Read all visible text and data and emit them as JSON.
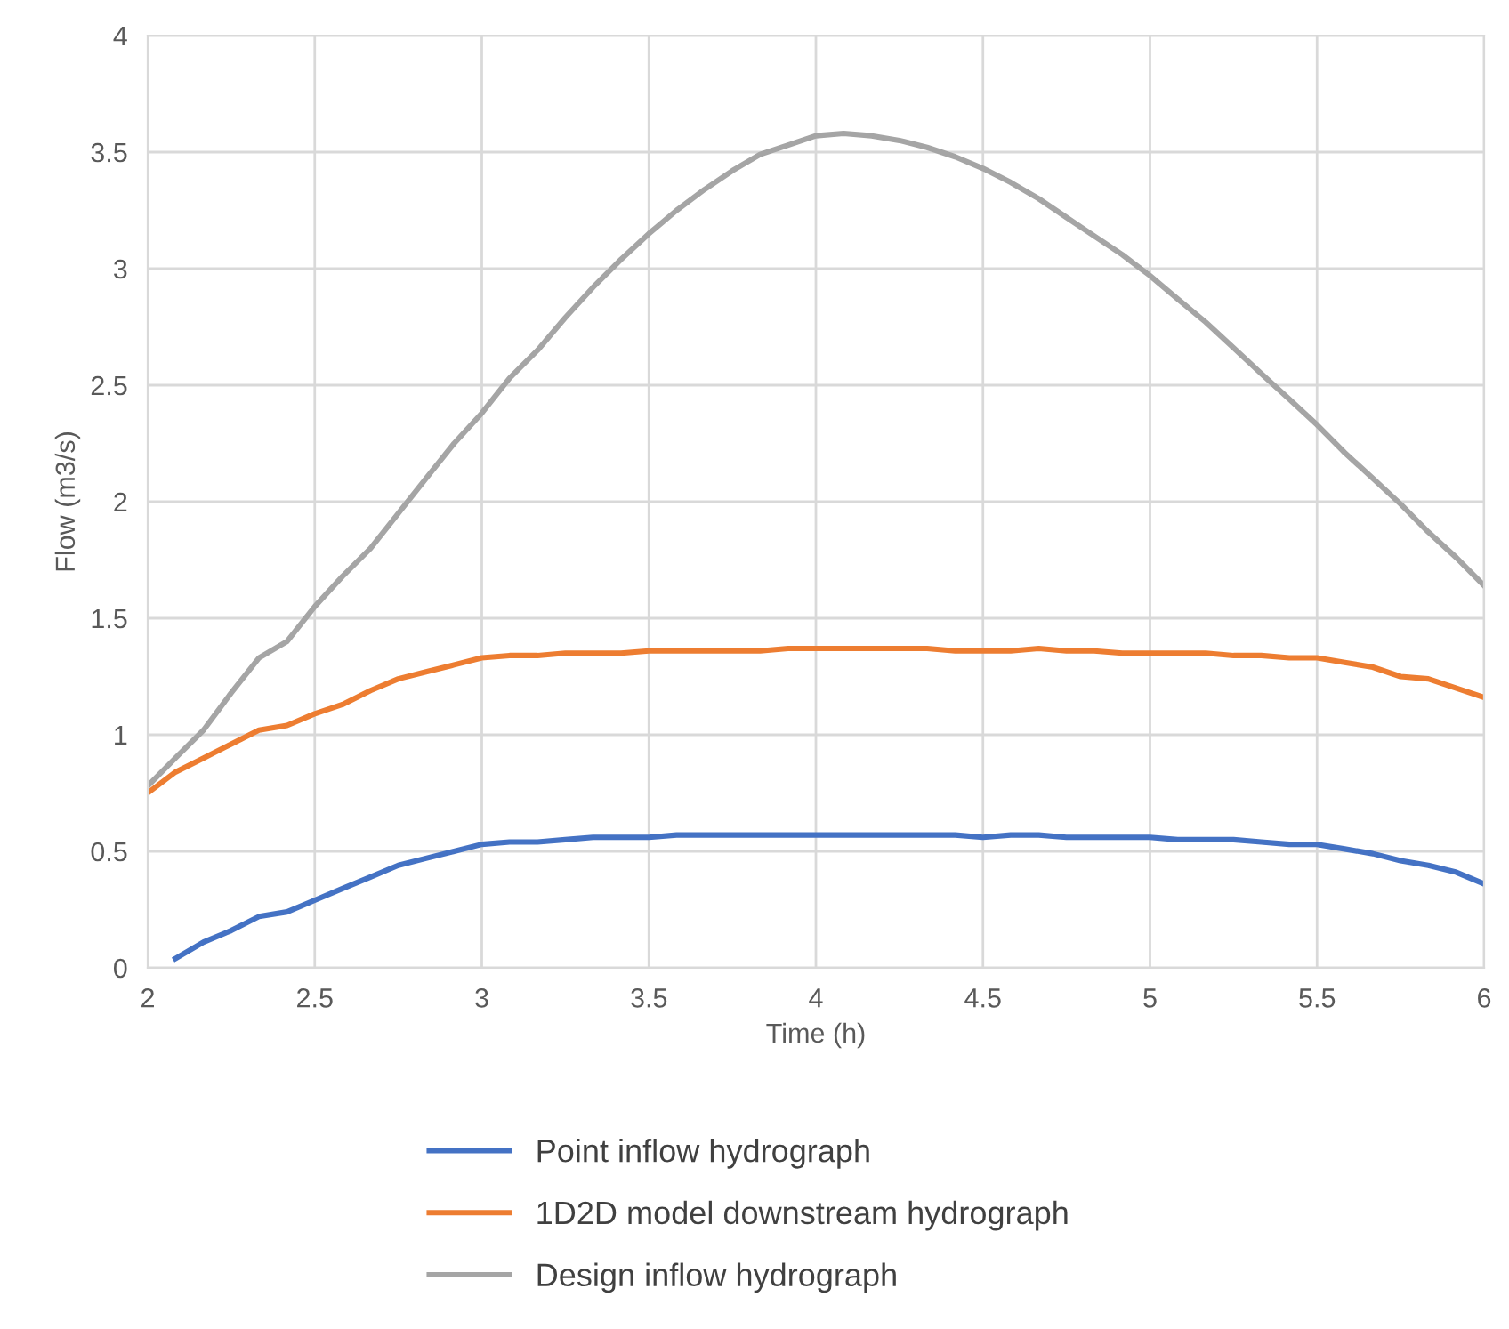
{
  "chart_data": {
    "type": "line",
    "xlabel": "Time (h)",
    "ylabel": "Flow (m3/s)",
    "x": [
      2,
      2.083,
      2.167,
      2.25,
      2.333,
      2.417,
      2.5,
      2.583,
      2.667,
      2.75,
      2.833,
      2.917,
      3,
      3.083,
      3.167,
      3.25,
      3.333,
      3.417,
      3.5,
      3.583,
      3.667,
      3.75,
      3.833,
      3.917,
      4,
      4.083,
      4.167,
      4.25,
      4.333,
      4.417,
      4.5,
      4.583,
      4.667,
      4.75,
      4.833,
      4.917,
      5,
      5.083,
      5.167,
      5.25,
      5.333,
      5.417,
      5.5,
      5.583,
      5.667,
      5.75,
      5.833,
      5.917,
      6
    ],
    "series": [
      {
        "name": "Point inflow hydrograph",
        "color": "#4472c4",
        "values": [
          null,
          0.04,
          0.11,
          0.16,
          0.22,
          0.24,
          0.29,
          0.34,
          0.39,
          0.44,
          0.47,
          0.5,
          0.53,
          0.54,
          0.54,
          0.55,
          0.56,
          0.56,
          0.56,
          0.57,
          0.57,
          0.57,
          0.57,
          0.57,
          0.57,
          0.57,
          0.57,
          0.57,
          0.57,
          0.57,
          0.56,
          0.57,
          0.57,
          0.56,
          0.56,
          0.56,
          0.56,
          0.55,
          0.55,
          0.55,
          0.54,
          0.53,
          0.53,
          0.51,
          0.49,
          0.46,
          0.44,
          0.41,
          0.36
        ]
      },
      {
        "name": "1D2D model downstream hydrograph",
        "color": "#ed7d31",
        "values": [
          0.75,
          0.84,
          0.9,
          0.96,
          1.02,
          1.04,
          1.09,
          1.13,
          1.19,
          1.24,
          1.27,
          1.3,
          1.33,
          1.34,
          1.34,
          1.35,
          1.35,
          1.35,
          1.36,
          1.36,
          1.36,
          1.36,
          1.36,
          1.37,
          1.37,
          1.37,
          1.37,
          1.37,
          1.37,
          1.36,
          1.36,
          1.36,
          1.37,
          1.36,
          1.36,
          1.35,
          1.35,
          1.35,
          1.35,
          1.34,
          1.34,
          1.33,
          1.33,
          1.31,
          1.29,
          1.25,
          1.24,
          1.2,
          1.16
        ]
      },
      {
        "name": "Design inflow hydrograph",
        "color": "#a5a5a5",
        "values": [
          0.78,
          0.9,
          1.02,
          1.18,
          1.33,
          1.4,
          1.55,
          1.68,
          1.8,
          1.95,
          2.1,
          2.25,
          2.38,
          2.53,
          2.65,
          2.79,
          2.92,
          3.04,
          3.15,
          3.25,
          3.34,
          3.42,
          3.49,
          3.53,
          3.57,
          3.58,
          3.57,
          3.55,
          3.52,
          3.48,
          3.43,
          3.37,
          3.3,
          3.22,
          3.14,
          3.06,
          2.97,
          2.87,
          2.77,
          2.66,
          2.55,
          2.44,
          2.33,
          2.21,
          2.1,
          1.99,
          1.87,
          1.76,
          1.64
        ]
      }
    ],
    "xlim": [
      2,
      6
    ],
    "xticks": [
      2,
      2.5,
      3,
      3.5,
      4,
      4.5,
      5,
      5.5,
      6
    ],
    "ylim": [
      0,
      4
    ],
    "yticks": [
      0,
      0.5,
      1,
      1.5,
      2,
      2.5,
      3,
      3.5,
      4
    ],
    "grid": true,
    "legend": "bottom",
    "marker": "none",
    "line_style": "solid"
  }
}
